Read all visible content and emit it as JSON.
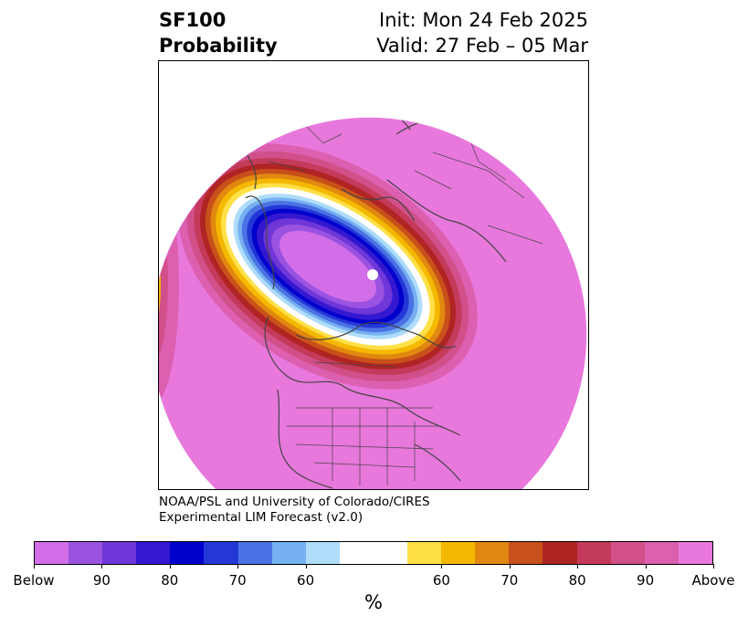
{
  "header": {
    "title_line1": "SF100",
    "title_line2": "Probability",
    "init_label": "Init: Mon 24 Feb 2025",
    "valid_label": "Valid: 27 Feb – 05 Mar"
  },
  "credit": {
    "line1": "NOAA/PSL and University of Colorado/CIRES",
    "line2": "Experimental LIM Forecast (v2.0)"
  },
  "colorbar": {
    "colors": [
      "#d26ee8",
      "#9a53e0",
      "#6f36d8",
      "#3418d0",
      "#0000cc",
      "#2438d6",
      "#4a72e4",
      "#76b0f0",
      "#aedcfa",
      "#ffffff",
      "#ffe047",
      "#f5b800",
      "#e08810",
      "#c8501a",
      "#b02424",
      "#c43a5a",
      "#d2508a",
      "#dc5fb0",
      "#e878dc"
    ],
    "tick_labels": [
      "Below",
      "90",
      "80",
      "70",
      "60",
      "60",
      "70",
      "80",
      "90",
      "Above"
    ],
    "units": "%"
  },
  "map": {
    "background_color": "#e878dc",
    "line_color": "#444444"
  }
}
